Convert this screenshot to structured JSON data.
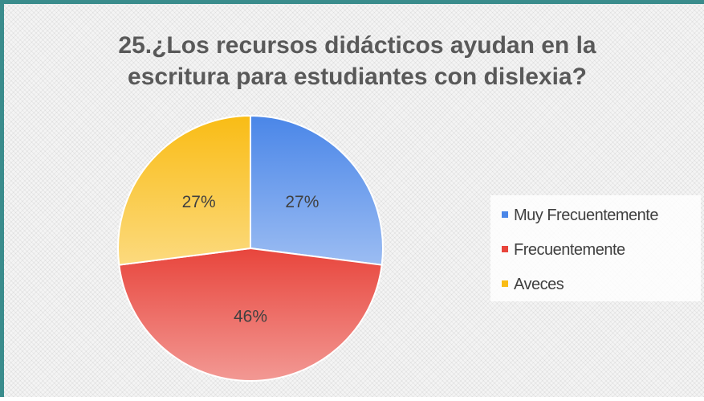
{
  "chart_data": {
    "type": "pie",
    "title": "25.¿Los recursos didácticos ayudan en la escritura para estudiantes con dislexia?",
    "categories": [
      "Muy Frecuentemente",
      "Frecuentemente",
      "Aveces"
    ],
    "values": [
      27,
      46,
      27
    ],
    "value_labels": [
      "27%",
      "46%",
      "27%"
    ],
    "colors": [
      "#4a86e8",
      "#e8453c",
      "#f9bc15"
    ],
    "legend": "right"
  }
}
